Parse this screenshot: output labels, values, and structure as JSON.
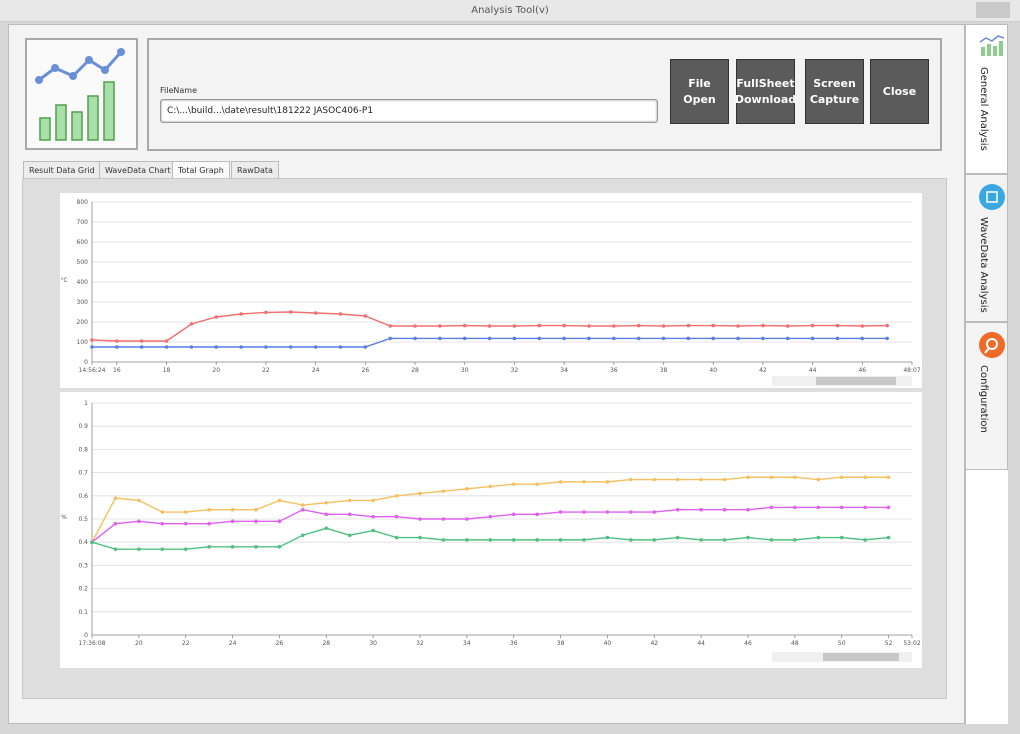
{
  "window": {
    "title": "Analysis Tool(v)"
  },
  "header": {
    "file_label": "FileName",
    "file_path": "C:\\...\\build...\\date\\result\\181222 JASOC406-P1",
    "buttons": [
      "File Open",
      "FullSheet Download",
      "Screen Capture",
      "Close"
    ]
  },
  "tabs": [
    "Result Data Grid",
    "WaveData Chart",
    "Total Graph",
    "RawData"
  ],
  "side_tabs": [
    "General Analysis",
    "WaveData Analysis",
    "Configuration"
  ],
  "chart_data": [
    {
      "type": "line",
      "y_label": "°C",
      "grid": true,
      "xlim": [
        15,
        48
      ],
      "xticks": [
        {
          "value": 15,
          "label": "14:56:24"
        },
        16,
        18,
        20,
        22,
        24,
        26,
        28,
        30,
        32,
        34,
        36,
        38,
        40,
        42,
        44,
        46,
        {
          "value": 48,
          "label": "48:07"
        }
      ],
      "ylim": [
        0,
        800
      ],
      "yticks": [
        0,
        100,
        200,
        300,
        400,
        500,
        600,
        700,
        800
      ],
      "x": [
        15,
        16,
        17,
        18,
        19,
        20,
        21,
        22,
        23,
        24,
        25,
        26,
        27,
        28,
        29,
        30,
        31,
        32,
        33,
        34,
        35,
        36,
        37,
        38,
        39,
        40,
        41,
        42,
        43,
        44,
        45,
        46,
        47
      ],
      "series": [
        {
          "color": "#f07070",
          "values": [
            110,
            105,
            105,
            105,
            190,
            225,
            240,
            248,
            250,
            245,
            240,
            230,
            180,
            180,
            180,
            182,
            180,
            180,
            182,
            182,
            180,
            180,
            182,
            180,
            182,
            182,
            180,
            182,
            180,
            182,
            182,
            180,
            182
          ]
        },
        {
          "color": "#5a7fe0",
          "values": [
            75,
            75,
            75,
            75,
            75,
            75,
            75,
            75,
            75,
            75,
            75,
            75,
            118,
            118,
            118,
            118,
            118,
            118,
            118,
            118,
            118,
            118,
            118,
            118,
            118,
            118,
            118,
            118,
            118,
            118,
            118,
            118,
            118
          ]
        }
      ]
    },
    {
      "type": "line",
      "y_label": "%",
      "grid": true,
      "xlim": [
        18,
        53
      ],
      "xticks": [
        {
          "value": 18,
          "label": "17:36:08"
        },
        20,
        22,
        24,
        26,
        28,
        30,
        32,
        34,
        36,
        38,
        40,
        42,
        44,
        46,
        48,
        50,
        52,
        {
          "value": 53,
          "label": "53:02"
        }
      ],
      "ylim": [
        0,
        1
      ],
      "yticks": [
        0,
        0.1,
        0.2,
        0.3,
        0.4,
        0.5,
        0.6,
        0.7,
        0.8,
        0.9,
        1
      ],
      "x": [
        18,
        19,
        20,
        21,
        22,
        23,
        24,
        25,
        26,
        27,
        28,
        29,
        30,
        31,
        32,
        33,
        34,
        35,
        36,
        37,
        38,
        39,
        40,
        41,
        42,
        43,
        44,
        45,
        46,
        47,
        48,
        49,
        50,
        51,
        52
      ],
      "series": [
        {
          "color": "#f5c060",
          "values": [
            0.4,
            0.59,
            0.58,
            0.53,
            0.53,
            0.54,
            0.54,
            0.54,
            0.58,
            0.56,
            0.57,
            0.58,
            0.58,
            0.6,
            0.61,
            0.62,
            0.63,
            0.64,
            0.65,
            0.65,
            0.66,
            0.66,
            0.66,
            0.67,
            0.67,
            0.67,
            0.67,
            0.67,
            0.68,
            0.68,
            0.68,
            0.67,
            0.68,
            0.68,
            0.68
          ]
        },
        {
          "color": "#e060f0",
          "values": [
            0.4,
            0.48,
            0.49,
            0.48,
            0.48,
            0.48,
            0.49,
            0.49,
            0.49,
            0.54,
            0.52,
            0.52,
            0.51,
            0.51,
            0.5,
            0.5,
            0.5,
            0.51,
            0.52,
            0.52,
            0.53,
            0.53,
            0.53,
            0.53,
            0.53,
            0.54,
            0.54,
            0.54,
            0.54,
            0.55,
            0.55,
            0.55,
            0.55,
            0.55,
            0.55
          ]
        },
        {
          "color": "#50c080",
          "values": [
            0.4,
            0.37,
            0.37,
            0.37,
            0.37,
            0.38,
            0.38,
            0.38,
            0.38,
            0.43,
            0.46,
            0.43,
            0.45,
            0.42,
            0.42,
            0.41,
            0.41,
            0.41,
            0.41,
            0.41,
            0.41,
            0.41,
            0.42,
            0.41,
            0.41,
            0.42,
            0.41,
            0.41,
            0.42,
            0.41,
            0.41,
            0.42,
            0.42,
            0.41,
            0.42
          ]
        }
      ]
    }
  ]
}
